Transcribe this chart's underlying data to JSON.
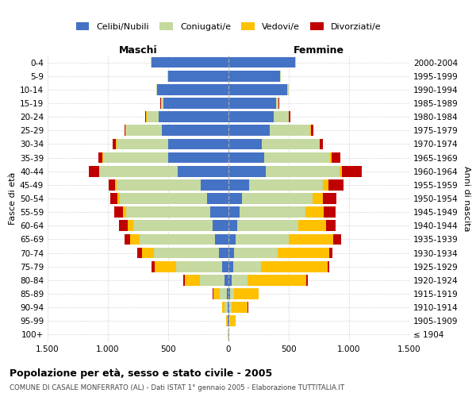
{
  "age_groups": [
    "100+",
    "95-99",
    "90-94",
    "85-89",
    "80-84",
    "75-79",
    "70-74",
    "65-69",
    "60-64",
    "55-59",
    "50-54",
    "45-49",
    "40-44",
    "35-39",
    "30-34",
    "25-29",
    "20-24",
    "15-19",
    "10-14",
    "5-9",
    "0-4"
  ],
  "birth_years": [
    "≤ 1904",
    "1905-1909",
    "1910-1914",
    "1915-1919",
    "1920-1924",
    "1925-1929",
    "1930-1934",
    "1935-1939",
    "1940-1944",
    "1945-1949",
    "1950-1954",
    "1955-1959",
    "1960-1964",
    "1965-1969",
    "1970-1974",
    "1975-1979",
    "1980-1984",
    "1985-1989",
    "1990-1994",
    "1995-1999",
    "2000-2004"
  ],
  "male_celibi": [
    2,
    4,
    8,
    15,
    35,
    55,
    80,
    110,
    130,
    150,
    180,
    230,
    420,
    500,
    500,
    550,
    580,
    540,
    590,
    500,
    640
  ],
  "male_coniugati": [
    2,
    8,
    25,
    55,
    200,
    380,
    540,
    630,
    660,
    700,
    720,
    700,
    650,
    540,
    430,
    300,
    100,
    18,
    8,
    4,
    4
  ],
  "male_vedovi": [
    1,
    8,
    18,
    55,
    130,
    180,
    100,
    75,
    45,
    25,
    18,
    8,
    4,
    4,
    4,
    2,
    1,
    1,
    1,
    0,
    0
  ],
  "male_divorziati": [
    0,
    2,
    4,
    4,
    8,
    25,
    35,
    45,
    70,
    75,
    65,
    55,
    85,
    35,
    25,
    12,
    8,
    4,
    2,
    1,
    1
  ],
  "female_nubili": [
    2,
    4,
    8,
    12,
    25,
    40,
    45,
    60,
    70,
    90,
    110,
    170,
    310,
    295,
    275,
    340,
    375,
    395,
    490,
    430,
    555
  ],
  "female_coniugate": [
    2,
    6,
    20,
    35,
    130,
    230,
    360,
    440,
    510,
    550,
    590,
    610,
    610,
    550,
    480,
    340,
    125,
    18,
    8,
    4,
    4
  ],
  "female_vedove": [
    2,
    50,
    130,
    200,
    490,
    550,
    430,
    370,
    230,
    150,
    80,
    50,
    18,
    8,
    4,
    4,
    2,
    1,
    1,
    0,
    0
  ],
  "female_divorziate": [
    0,
    2,
    4,
    4,
    12,
    18,
    25,
    65,
    75,
    95,
    115,
    125,
    165,
    75,
    25,
    18,
    8,
    4,
    2,
    1,
    1
  ],
  "colors": {
    "celibi_nubili": "#4472c4",
    "coniugati_e": "#c5d9a0",
    "vedovi_e": "#ffc000",
    "divorziati_e": "#c00000"
  },
  "title": "Popolazione per età, sesso e stato civile - 2005",
  "subtitle": "COMUNE DI CASALE MONFERRATO (AL) - Dati ISTAT 1° gennaio 2005 - Elaborazione TUTTITALIA.IT",
  "label_maschi": "Maschi",
  "label_femmine": "Femmine",
  "ylabel_left": "Fasce di età",
  "ylabel_right": "Anni di nascita",
  "legend_labels": [
    "Celibi/Nubili",
    "Coniugati/e",
    "Vedovi/e",
    "Divorziati/e"
  ],
  "xlim": 1500,
  "xticks": [
    -1500,
    -1000,
    -500,
    0,
    500,
    1000,
    1500
  ],
  "xticklabels": [
    "1.500",
    "1.000",
    "500",
    "0",
    "500",
    "1.000",
    "1.500"
  ],
  "background_color": "#ffffff",
  "grid_color": "#cccccc"
}
